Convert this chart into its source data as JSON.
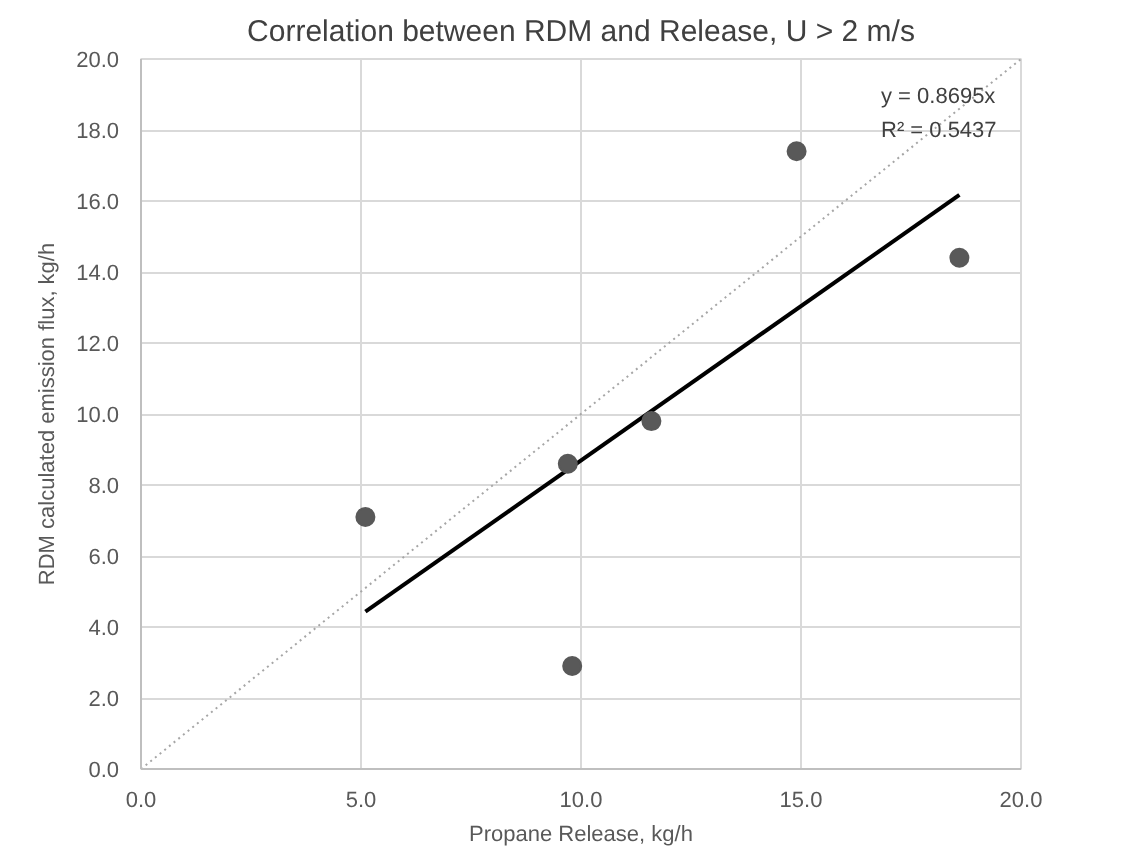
{
  "chart_data": {
    "type": "scatter",
    "title": "Correlation between RDM and Release, U > 2 m/s",
    "xlabel": "Propane Release, kg/h",
    "ylabel": "RDM calculated emission flux, kg/h",
    "xlim": [
      0,
      20
    ],
    "ylim": [
      0,
      20
    ],
    "xticks": [
      {
        "value": 0,
        "label": "0.0"
      },
      {
        "value": 5,
        "label": "5.0"
      },
      {
        "value": 10,
        "label": "10.0"
      },
      {
        "value": 15,
        "label": "15.0"
      },
      {
        "value": 20,
        "label": "20.0"
      }
    ],
    "yticks": [
      {
        "value": 0,
        "label": "0.0"
      },
      {
        "value": 2,
        "label": "2.0"
      },
      {
        "value": 4,
        "label": "4.0"
      },
      {
        "value": 6,
        "label": "6.0"
      },
      {
        "value": 8,
        "label": "8.0"
      },
      {
        "value": 10,
        "label": "10.0"
      },
      {
        "value": 12,
        "label": "12.0"
      },
      {
        "value": 14,
        "label": "14.0"
      },
      {
        "value": 16,
        "label": "16.0"
      },
      {
        "value": 18,
        "label": "18.0"
      },
      {
        "value": 20,
        "label": "20.0"
      }
    ],
    "grid": true,
    "marker": "circle",
    "series": [
      {
        "color": "#595959",
        "x": [
          5.1,
          9.7,
          9.8,
          11.6,
          14.9,
          18.6
        ],
        "values": [
          7.1,
          8.6,
          2.9,
          9.8,
          17.4,
          14.4
        ]
      },
      {
        "type": "line",
        "color": "#000000",
        "line_style": "solid",
        "marker": "none",
        "x": [
          5.1,
          18.6
        ],
        "values": [
          4.43,
          16.17
        ]
      },
      {
        "type": "line",
        "color": "#a6a6a6",
        "line_style": "dotted",
        "marker": "none",
        "x": [
          0,
          20
        ],
        "values": [
          0,
          20
        ]
      }
    ],
    "annotations": [
      "y = 0.8695x",
      "R² = 0.5437"
    ]
  }
}
